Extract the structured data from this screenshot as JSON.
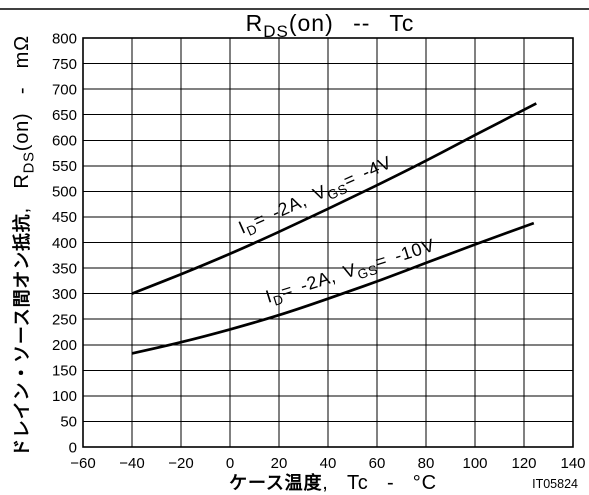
{
  "chart_data": {
    "type": "line",
    "title": "RDS(on) -- Tc",
    "xlabel": "ケース温度, Tc - °C",
    "ylabel": "ドレイン・ソース間オン抵抗, RDS(on) - mΩ",
    "xlim": [
      -60,
      140
    ],
    "ylim": [
      0,
      800
    ],
    "xticks": [
      -60,
      -40,
      -20,
      0,
      20,
      40,
      60,
      80,
      100,
      120,
      140
    ],
    "yticks": [
      0,
      50,
      100,
      150,
      200,
      250,
      300,
      350,
      400,
      450,
      500,
      550,
      600,
      650,
      700,
      750,
      800
    ],
    "grid": true,
    "series": [
      {
        "name": "ID= -2A, VGS= -4V",
        "color": "#000000",
        "x": [
          -40,
          -20,
          0,
          20,
          40,
          60,
          80,
          100,
          125
        ],
        "y": [
          300,
          338,
          378,
          421,
          466,
          512,
          560,
          610,
          672
        ]
      },
      {
        "name": "ID= -2A, VGS= -10V",
        "color": "#000000",
        "x": [
          -40,
          -20,
          0,
          20,
          40,
          60,
          80,
          100,
          124
        ],
        "y": [
          183,
          205,
          230,
          258,
          290,
          324,
          360,
          396,
          438
        ]
      }
    ]
  },
  "figure_code": "IT05824"
}
